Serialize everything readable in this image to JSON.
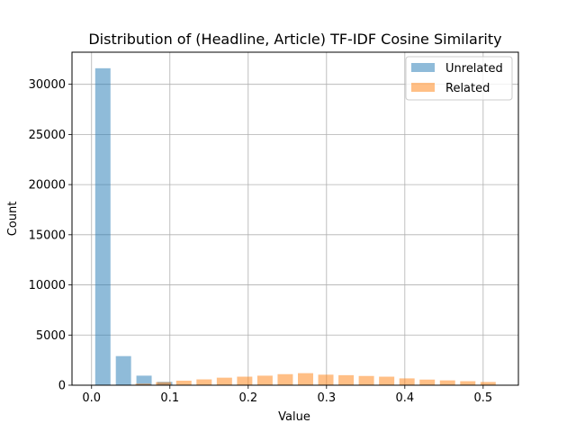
{
  "chart_data": {
    "type": "bar",
    "title": "Distribution of (Headline, Article) TF-IDF Cosine Similarity",
    "xlabel": "Value",
    "ylabel": "Count",
    "xlim": [
      -0.025,
      0.545
    ],
    "ylim": [
      0,
      33200
    ],
    "grid": true,
    "legend_position": "top-right",
    "x_ticks": [
      0.0,
      0.1,
      0.2,
      0.3,
      0.4,
      0.5
    ],
    "x_tick_labels": [
      "0.0",
      "0.1",
      "0.2",
      "0.3",
      "0.4",
      "0.5"
    ],
    "y_ticks": [
      0,
      5000,
      10000,
      15000,
      20000,
      25000,
      30000
    ],
    "y_tick_labels": [
      "0",
      "5000",
      "10000",
      "15000",
      "20000",
      "25000",
      "30000"
    ],
    "series": [
      {
        "name": "Unrelated",
        "color": "#1f77b4",
        "opacity": 0.5,
        "bin_width": 0.0195,
        "x": [
          0.0144,
          0.0407,
          0.067,
          0.0934
        ],
        "values": [
          31600,
          2900,
          950,
          330
        ]
      },
      {
        "name": "Related",
        "color": "#ff7f0e",
        "opacity": 0.5,
        "bin_width": 0.0195,
        "x": [
          0.0658,
          0.0919,
          0.1178,
          0.1437,
          0.1696,
          0.1955,
          0.2214,
          0.2473,
          0.2732,
          0.2991,
          0.325,
          0.3509,
          0.3768,
          0.4027,
          0.4286,
          0.4545,
          0.4804,
          0.5063
        ],
        "values": [
          150,
          300,
          450,
          580,
          750,
          850,
          950,
          1100,
          1200,
          1050,
          1000,
          920,
          850,
          680,
          560,
          480,
          400,
          320
        ]
      }
    ]
  }
}
